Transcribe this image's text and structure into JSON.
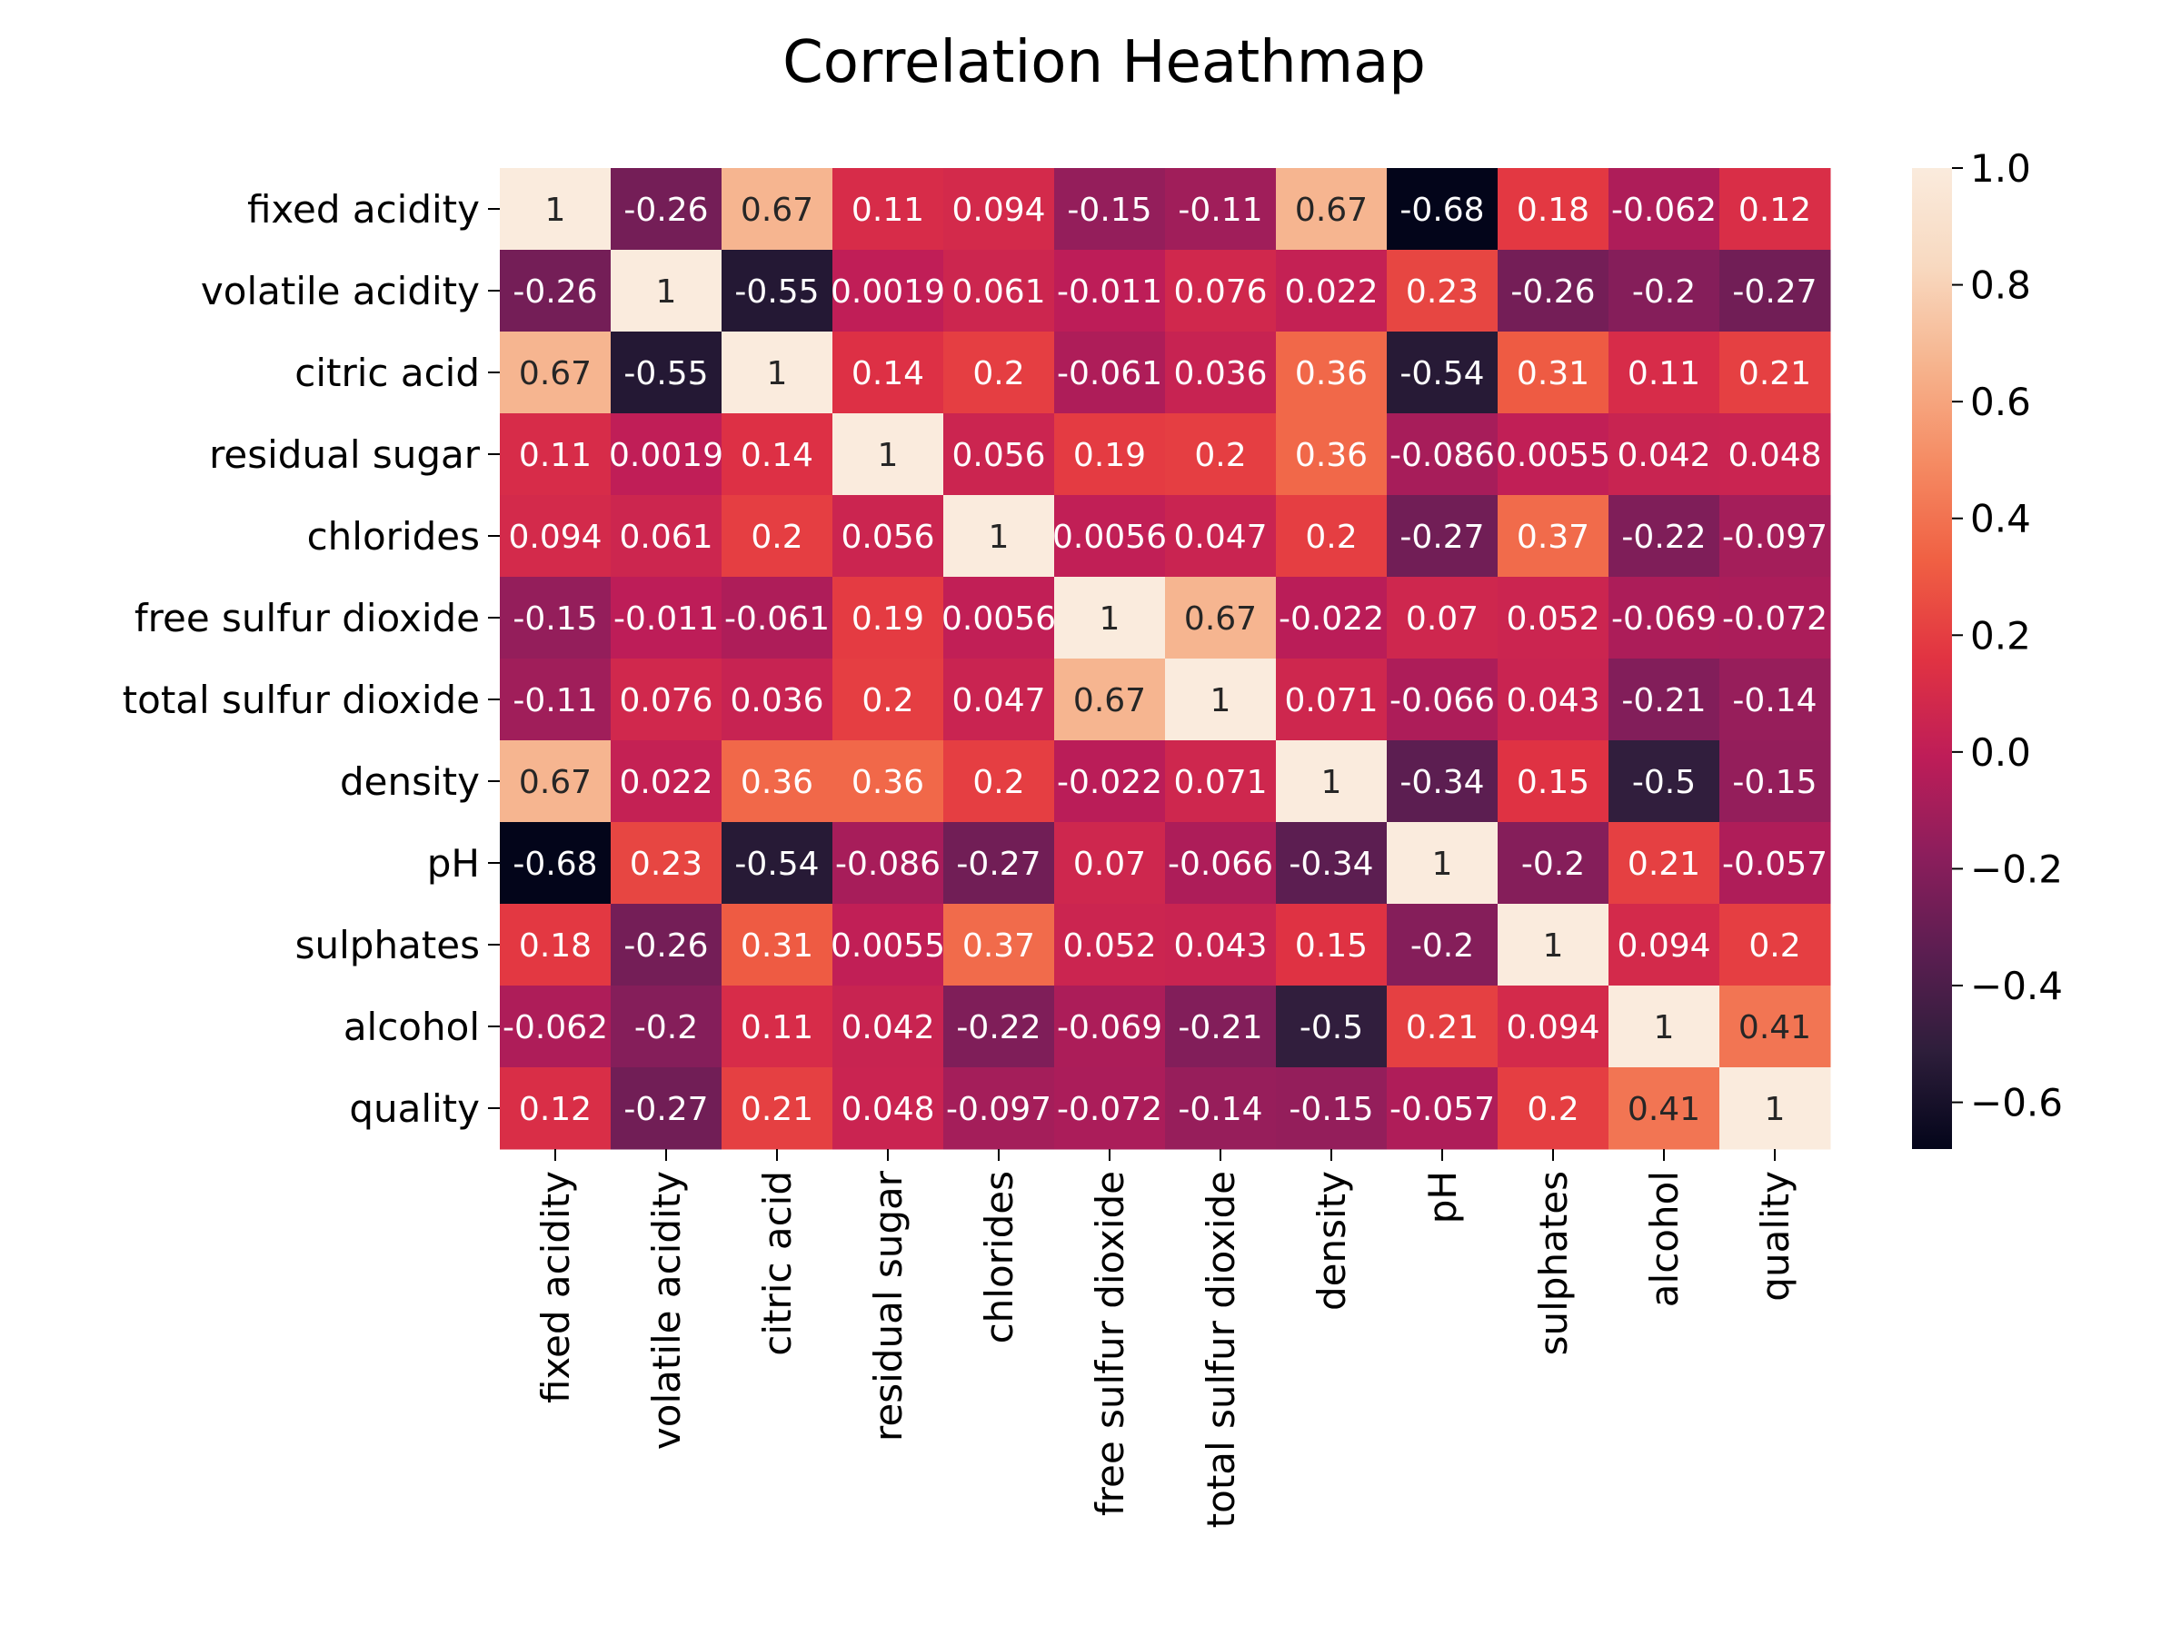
{
  "chart_data": {
    "type": "heatmap",
    "title": "Correlation Heathmap",
    "rows": [
      "fixed acidity",
      "volatile acidity",
      "citric acid",
      "residual sugar",
      "chlorides",
      "free sulfur dioxide",
      "total sulfur dioxide",
      "density",
      "pH",
      "sulphates",
      "alcohol",
      "quality"
    ],
    "columns": [
      "fixed acidity",
      "volatile acidity",
      "citric acid",
      "residual sugar",
      "chlorides",
      "free sulfur dioxide",
      "total sulfur dioxide",
      "density",
      "pH",
      "sulphates",
      "alcohol",
      "quality"
    ],
    "values": [
      [
        1,
        -0.26,
        0.67,
        0.11,
        0.094,
        -0.15,
        -0.11,
        0.67,
        -0.68,
        0.18,
        -0.062,
        0.12
      ],
      [
        -0.26,
        1,
        -0.55,
        0.0019,
        0.061,
        -0.011,
        0.076,
        0.022,
        0.23,
        -0.26,
        -0.2,
        -0.27
      ],
      [
        0.67,
        -0.55,
        1,
        0.14,
        0.2,
        -0.061,
        0.036,
        0.36,
        -0.54,
        0.31,
        0.11,
        0.21
      ],
      [
        0.11,
        0.0019,
        0.14,
        1,
        0.056,
        0.19,
        0.2,
        0.36,
        -0.086,
        0.0055,
        0.042,
        0.048
      ],
      [
        0.094,
        0.061,
        0.2,
        0.056,
        1,
        0.0056,
        0.047,
        0.2,
        -0.27,
        0.37,
        -0.22,
        -0.097
      ],
      [
        -0.15,
        -0.011,
        -0.061,
        0.19,
        0.0056,
        1,
        0.67,
        -0.022,
        0.07,
        0.052,
        -0.069,
        -0.072
      ],
      [
        -0.11,
        0.076,
        0.036,
        0.2,
        0.047,
        0.67,
        1,
        0.071,
        -0.066,
        0.043,
        -0.21,
        -0.14
      ],
      [
        0.67,
        0.022,
        0.36,
        0.36,
        0.2,
        -0.022,
        0.071,
        1,
        -0.34,
        0.15,
        -0.5,
        -0.15
      ],
      [
        -0.68,
        0.23,
        -0.54,
        -0.086,
        -0.27,
        0.07,
        -0.066,
        -0.34,
        1,
        -0.2,
        0.21,
        -0.057
      ],
      [
        0.18,
        -0.26,
        0.31,
        0.0055,
        0.37,
        0.052,
        0.043,
        0.15,
        -0.2,
        1,
        0.094,
        0.2
      ],
      [
        -0.062,
        -0.2,
        0.11,
        0.042,
        -0.22,
        -0.069,
        -0.21,
        -0.5,
        0.21,
        0.094,
        1,
        0.41
      ],
      [
        0.12,
        -0.27,
        0.21,
        0.048,
        -0.097,
        -0.072,
        -0.14,
        -0.15,
        -0.057,
        0.2,
        0.41,
        1
      ]
    ],
    "colorbar": {
      "range": [
        -0.68,
        1.0
      ],
      "ticks": [
        1.0,
        0.8,
        0.6,
        0.4,
        0.2,
        0.0,
        -0.2,
        -0.4,
        -0.6
      ],
      "tick_labels": [
        "1.0",
        "0.8",
        "0.6",
        "0.4",
        "0.2",
        "0.0",
        "−0.2",
        "−0.4",
        "−0.6"
      ],
      "colormap": "rocket",
      "color_stops": [
        "#03051a",
        "#2e1e3b",
        "#5b1e51",
        "#8c1e5c",
        "#be1d58",
        "#e13342",
        "#f06043",
        "#f58b63",
        "#f6b48e",
        "#f8d9c0",
        "#faebdd"
      ]
    },
    "annotations": "cell values shown",
    "grid": false,
    "legend": "colorbar-right"
  }
}
